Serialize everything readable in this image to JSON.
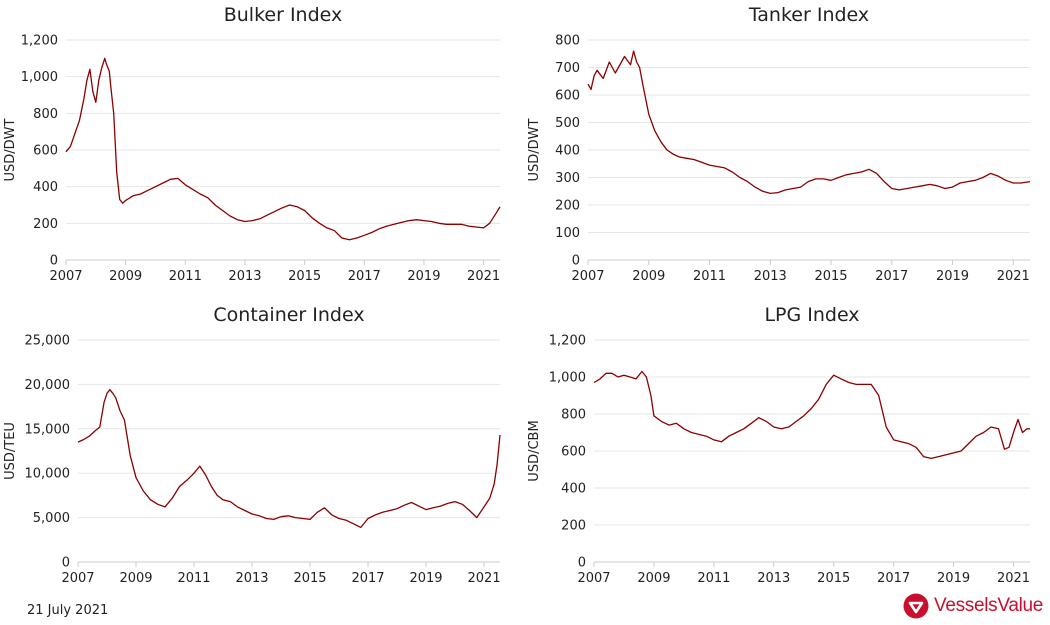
{
  "footer": {
    "date": "21 July 2021",
    "logo_text": "VesselsValue"
  },
  "colors": {
    "line": "#8b0000",
    "grid": "#e6e6e6",
    "axis": "#cccccc",
    "brand": "#c8102e"
  },
  "chart_data": [
    {
      "type": "line",
      "title": "Bulker Index",
      "ylabel": "USD/DWT",
      "xlabel": "",
      "xlim": [
        2007,
        2021.55
      ],
      "ylim": [
        0,
        1200
      ],
      "xticks": [
        "2007",
        "2009",
        "2011",
        "2013",
        "2015",
        "2017",
        "2019",
        "2021"
      ],
      "yticks": [
        "0",
        "200",
        "400",
        "600",
        "800",
        "1,000",
        "1,200"
      ],
      "grid": "horizontal",
      "series": [
        {
          "x": [
            2007.0,
            2007.15,
            2007.3,
            2007.45,
            2007.6,
            2007.7,
            2007.8,
            2007.9,
            2008.0,
            2008.1,
            2008.2,
            2008.3,
            2008.35,
            2008.45,
            2008.5,
            2008.6,
            2008.7,
            2008.8,
            2008.9,
            2009.0,
            2009.25,
            2009.5,
            2009.75,
            2010.0,
            2010.25,
            2010.5,
            2010.75,
            2011.0,
            2011.25,
            2011.5,
            2011.75,
            2012.0,
            2012.25,
            2012.5,
            2012.75,
            2013.0,
            2013.25,
            2013.5,
            2013.75,
            2014.0,
            2014.25,
            2014.5,
            2014.75,
            2015.0,
            2015.25,
            2015.5,
            2015.75,
            2016.0,
            2016.25,
            2016.5,
            2016.75,
            2017.0,
            2017.25,
            2017.5,
            2017.75,
            2018.0,
            2018.25,
            2018.5,
            2018.75,
            2019.0,
            2019.25,
            2019.5,
            2019.75,
            2020.0,
            2020.25,
            2020.5,
            2020.75,
            2021.0,
            2021.2,
            2021.4,
            2021.55
          ],
          "y": [
            590,
            620,
            690,
            760,
            880,
            980,
            1040,
            920,
            860,
            980,
            1050,
            1100,
            1070,
            1030,
            950,
            800,
            480,
            330,
            310,
            325,
            350,
            360,
            380,
            400,
            420,
            440,
            445,
            410,
            385,
            360,
            340,
            300,
            270,
            240,
            220,
            210,
            215,
            225,
            245,
            265,
            285,
            300,
            290,
            270,
            230,
            200,
            175,
            160,
            120,
            110,
            120,
            135,
            150,
            170,
            185,
            195,
            205,
            215,
            220,
            215,
            210,
            200,
            195,
            195,
            195,
            185,
            180,
            175,
            200,
            250,
            290
          ]
        }
      ]
    },
    {
      "type": "line",
      "title": "Tanker Index",
      "ylabel": "USD/DWT",
      "xlabel": "",
      "xlim": [
        2007,
        2021.55
      ],
      "ylim": [
        0,
        800
      ],
      "xticks": [
        "2007",
        "2009",
        "2011",
        "2013",
        "2015",
        "2017",
        "2019",
        "2021"
      ],
      "yticks": [
        "0",
        "100",
        "200",
        "300",
        "400",
        "500",
        "600",
        "700",
        "800"
      ],
      "grid": "horizontal",
      "series": [
        {
          "x": [
            2007.0,
            2007.1,
            2007.2,
            2007.3,
            2007.5,
            2007.7,
            2007.9,
            2008.0,
            2008.2,
            2008.4,
            2008.5,
            2008.6,
            2008.7,
            2008.8,
            2009.0,
            2009.2,
            2009.4,
            2009.6,
            2009.8,
            2010.0,
            2010.25,
            2010.5,
            2010.75,
            2011.0,
            2011.25,
            2011.5,
            2011.75,
            2012.0,
            2012.25,
            2012.5,
            2012.75,
            2013.0,
            2013.25,
            2013.5,
            2013.75,
            2014.0,
            2014.25,
            2014.5,
            2014.75,
            2015.0,
            2015.25,
            2015.5,
            2015.75,
            2016.0,
            2016.25,
            2016.5,
            2016.75,
            2017.0,
            2017.25,
            2017.5,
            2017.75,
            2018.0,
            2018.25,
            2018.5,
            2018.75,
            2019.0,
            2019.25,
            2019.5,
            2019.75,
            2020.0,
            2020.25,
            2020.5,
            2020.75,
            2021.0,
            2021.25,
            2021.55
          ],
          "y": [
            640,
            620,
            670,
            690,
            660,
            720,
            680,
            700,
            740,
            710,
            760,
            720,
            700,
            640,
            530,
            470,
            430,
            400,
            385,
            375,
            370,
            365,
            355,
            345,
            340,
            335,
            320,
            300,
            285,
            265,
            250,
            242,
            245,
            255,
            260,
            265,
            285,
            295,
            295,
            290,
            300,
            310,
            315,
            320,
            330,
            315,
            285,
            260,
            255,
            260,
            265,
            270,
            275,
            270,
            260,
            265,
            280,
            285,
            290,
            300,
            315,
            305,
            290,
            280,
            280,
            285
          ]
        }
      ]
    },
    {
      "type": "line",
      "title": "Container Index",
      "ylabel": "USD/TEU",
      "xlabel": "",
      "xlim": [
        2007,
        2021.55
      ],
      "ylim": [
        0,
        25000
      ],
      "xticks": [
        "2007",
        "2009",
        "2011",
        "2013",
        "2015",
        "2017",
        "2019",
        "2021"
      ],
      "yticks": [
        "0",
        "5,000",
        "10,000",
        "15,000",
        "20,000",
        "25,000"
      ],
      "grid": "horizontal",
      "series": [
        {
          "x": [
            2007.0,
            2007.2,
            2007.4,
            2007.6,
            2007.75,
            2007.9,
            2008.0,
            2008.1,
            2008.2,
            2008.3,
            2008.45,
            2008.6,
            2008.8,
            2009.0,
            2009.25,
            2009.5,
            2009.75,
            2010.0,
            2010.25,
            2010.5,
            2010.75,
            2011.0,
            2011.2,
            2011.4,
            2011.6,
            2011.8,
            2012.0,
            2012.25,
            2012.5,
            2012.75,
            2013.0,
            2013.25,
            2013.5,
            2013.75,
            2014.0,
            2014.25,
            2014.5,
            2014.75,
            2015.0,
            2015.25,
            2015.5,
            2015.75,
            2016.0,
            2016.25,
            2016.5,
            2016.75,
            2017.0,
            2017.25,
            2017.5,
            2017.75,
            2018.0,
            2018.25,
            2018.5,
            2018.75,
            2019.0,
            2019.25,
            2019.5,
            2019.75,
            2020.0,
            2020.25,
            2020.5,
            2020.75,
            2021.0,
            2021.2,
            2021.35,
            2021.45,
            2021.55
          ],
          "y": [
            13500,
            13800,
            14200,
            14800,
            15200,
            18000,
            19000,
            19400,
            19000,
            18500,
            17000,
            16000,
            12000,
            9500,
            8000,
            7000,
            6500,
            6200,
            7200,
            8500,
            9200,
            10000,
            10800,
            9800,
            8500,
            7500,
            7000,
            6800,
            6200,
            5800,
            5400,
            5200,
            4900,
            4800,
            5100,
            5200,
            5000,
            4900,
            4800,
            5600,
            6100,
            5300,
            4900,
            4700,
            4300,
            3900,
            4900,
            5300,
            5600,
            5800,
            6000,
            6400,
            6700,
            6300,
            5900,
            6100,
            6300,
            6600,
            6800,
            6500,
            5800,
            5000,
            6200,
            7200,
            8800,
            11000,
            14300
          ]
        }
      ]
    },
    {
      "type": "line",
      "title": "LPG Index",
      "ylabel": "USD/CBM",
      "xlabel": "",
      "xlim": [
        2007,
        2021.55
      ],
      "ylim": [
        0,
        1200
      ],
      "xticks": [
        "2007",
        "2009",
        "2011",
        "2013",
        "2015",
        "2017",
        "2019",
        "2021"
      ],
      "yticks": [
        "0",
        "200",
        "400",
        "600",
        "800",
        "1,000",
        "1,200"
      ],
      "grid": "horizontal",
      "series": [
        {
          "x": [
            2007.0,
            2007.2,
            2007.4,
            2007.6,
            2007.8,
            2008.0,
            2008.2,
            2008.4,
            2008.6,
            2008.75,
            2008.9,
            2009.0,
            2009.25,
            2009.5,
            2009.75,
            2010.0,
            2010.25,
            2010.5,
            2010.75,
            2011.0,
            2011.25,
            2011.5,
            2011.75,
            2012.0,
            2012.25,
            2012.5,
            2012.75,
            2013.0,
            2013.25,
            2013.5,
            2013.75,
            2014.0,
            2014.25,
            2014.5,
            2014.75,
            2015.0,
            2015.25,
            2015.5,
            2015.75,
            2016.0,
            2016.25,
            2016.5,
            2016.75,
            2017.0,
            2017.25,
            2017.5,
            2017.75,
            2018.0,
            2018.25,
            2018.5,
            2018.75,
            2019.0,
            2019.25,
            2019.5,
            2019.75,
            2020.0,
            2020.25,
            2020.5,
            2020.7,
            2020.85,
            2021.0,
            2021.15,
            2021.3,
            2021.45,
            2021.55
          ],
          "y": [
            970,
            990,
            1020,
            1020,
            1000,
            1010,
            1000,
            990,
            1030,
            1000,
            900,
            790,
            760,
            740,
            750,
            720,
            700,
            690,
            680,
            660,
            650,
            680,
            700,
            720,
            750,
            780,
            760,
            730,
            720,
            730,
            760,
            790,
            830,
            880,
            960,
            1010,
            990,
            970,
            960,
            960,
            960,
            900,
            730,
            660,
            650,
            640,
            620,
            570,
            560,
            570,
            580,
            590,
            600,
            640,
            680,
            700,
            730,
            720,
            610,
            620,
            700,
            770,
            700,
            720,
            720
          ]
        }
      ]
    }
  ]
}
